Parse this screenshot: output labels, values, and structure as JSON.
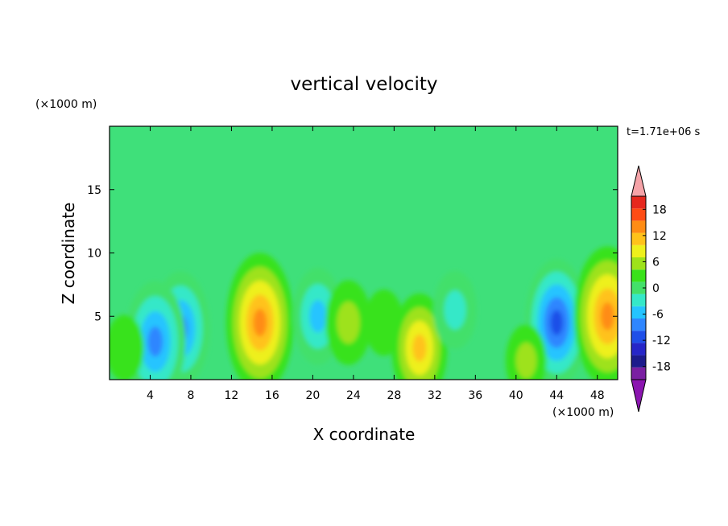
{
  "chart_data": {
    "type": "heatmap",
    "title": "vertical velocity",
    "xlabel": "X coordinate",
    "ylabel": "Z coordinate",
    "x_unit": "(×1000 m)",
    "y_unit": "(×1000 m)",
    "time_label": "t=1.71e+06 s",
    "xlim": [
      0,
      50
    ],
    "ylim": [
      0,
      20
    ],
    "x_ticks": [
      4,
      8,
      12,
      16,
      20,
      24,
      28,
      32,
      36,
      40,
      44,
      48
    ],
    "y_ticks": [
      5,
      10,
      15
    ],
    "colorbar": {
      "levels": [
        -21,
        -18,
        -15,
        -12,
        -9,
        -6,
        -3,
        0,
        3,
        6,
        9,
        12,
        15,
        18,
        21
      ],
      "tick_labels": [
        18,
        12,
        6,
        0,
        -6,
        -12,
        -18
      ],
      "colors": [
        "#7a1fa2",
        "#1c1b8c",
        "#2626c8",
        "#1f4fe8",
        "#2f86ff",
        "#25c4ff",
        "#35e8c8",
        "#43e06a",
        "#39e21a",
        "#9ee21a",
        "#eef01c",
        "#ffc21a",
        "#ff8c14",
        "#ff4c14",
        "#e6281e",
        "#f5a3a8"
      ],
      "under_color": "#8b15b0",
      "over_color": "#f5a3a8"
    },
    "features": [
      {
        "x": 7,
        "z": 4,
        "value": -12
      },
      {
        "x": 4.5,
        "z": 3,
        "value": -13
      },
      {
        "x": 14.8,
        "z": 4.5,
        "value": 16
      },
      {
        "x": 20.5,
        "z": 5,
        "value": -9
      },
      {
        "x": 23.5,
        "z": 4.5,
        "value": 7
      },
      {
        "x": 27,
        "z": 4.5,
        "value": 4
      },
      {
        "x": 30.5,
        "z": 2.5,
        "value": 11
      },
      {
        "x": 44,
        "z": 4.5,
        "value": -14
      },
      {
        "x": 49,
        "z": 5,
        "value": 16
      },
      {
        "x": 41,
        "z": 1.5,
        "value": 5
      },
      {
        "x": 34,
        "z": 5.5,
        "value": -6
      },
      {
        "x": 1.5,
        "z": 2.5,
        "value": 4
      }
    ]
  }
}
